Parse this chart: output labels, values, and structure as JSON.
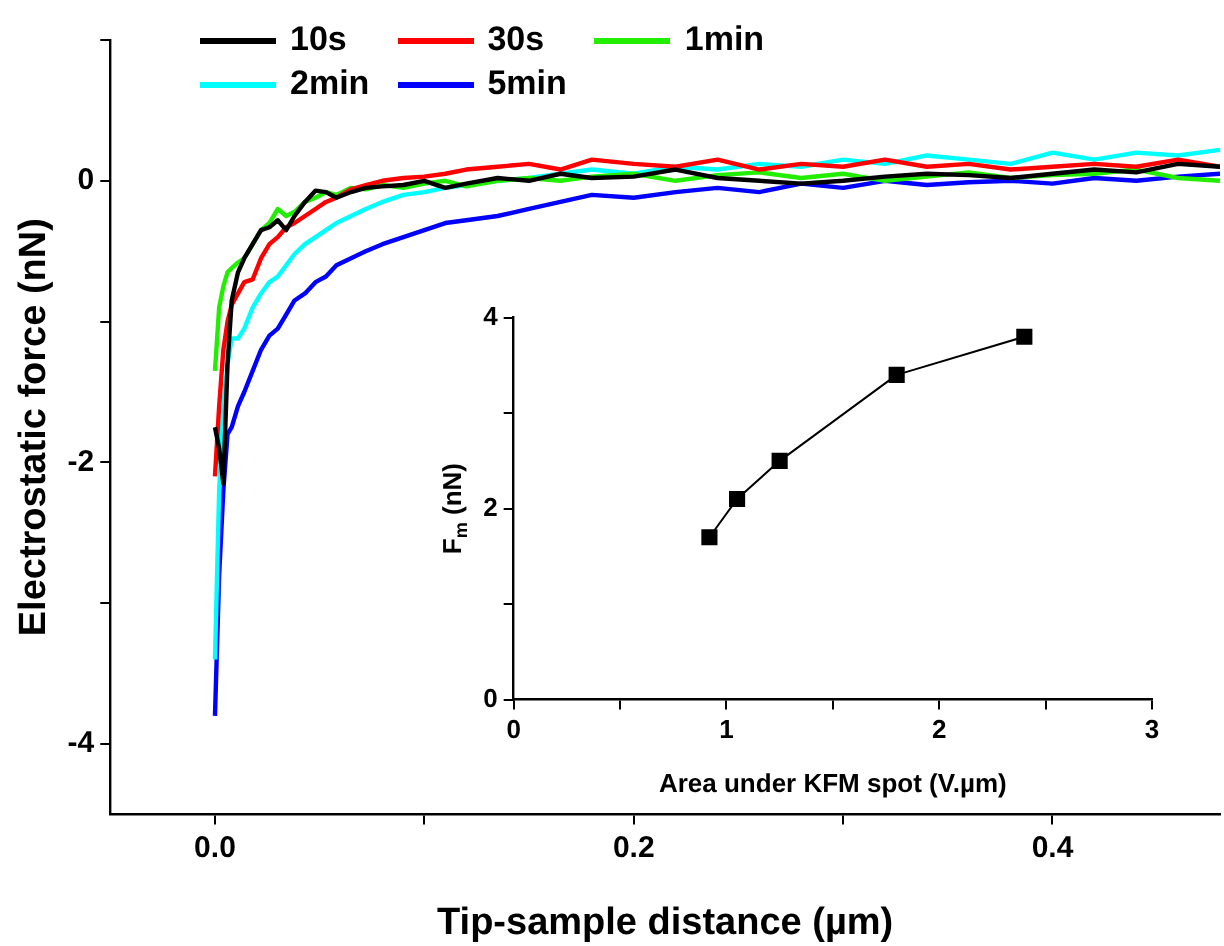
{
  "chart_data": [
    {
      "type": "line",
      "xlabel": "Tip-sample distance (µm)",
      "ylabel": "Electrostatic force (nN)",
      "x": [
        0,
        0.002,
        0.004,
        0.006,
        0.008,
        0.011,
        0.014,
        0.018,
        0.022,
        0.026,
        0.03,
        0.034,
        0.038,
        0.043,
        0.048,
        0.053,
        0.058,
        0.065,
        0.072,
        0.08,
        0.09,
        0.1,
        0.11,
        0.12,
        0.135,
        0.15,
        0.165,
        0.18,
        0.2,
        0.22,
        0.24,
        0.26,
        0.28,
        0.3,
        0.32,
        0.34,
        0.36,
        0.38,
        0.4,
        0.42,
        0.44,
        0.46,
        0.48
      ],
      "series": [
        {
          "name": "10s",
          "color": "#000000",
          "values": [
            -1.75,
            -1.9,
            -2.15,
            -1.3,
            -0.85,
            -0.65,
            -0.55,
            -0.45,
            -0.35,
            -0.33,
            -0.28,
            -0.35,
            -0.25,
            -0.15,
            -0.07,
            -0.08,
            -0.12,
            -0.08,
            -0.05,
            -0.04,
            -0.03,
            0.0,
            -0.05,
            -0.02,
            0.02,
            0.0,
            0.05,
            0.02,
            0.03,
            0.08,
            0.02,
            0.0,
            -0.02,
            0.0,
            0.03,
            0.05,
            0.04,
            0.02,
            0.05,
            0.08,
            0.06,
            0.12,
            0.1
          ]
        },
        {
          "name": "30s",
          "color": "#ff0000",
          "values": [
            -2.1,
            -1.6,
            -1.2,
            -1.0,
            -0.88,
            -0.8,
            -0.72,
            -0.7,
            -0.55,
            -0.45,
            -0.4,
            -0.33,
            -0.3,
            -0.25,
            -0.2,
            -0.15,
            -0.12,
            -0.06,
            -0.03,
            0.0,
            0.02,
            0.03,
            0.05,
            0.08,
            0.1,
            0.12,
            0.08,
            0.15,
            0.12,
            0.1,
            0.15,
            0.08,
            0.12,
            0.1,
            0.15,
            0.1,
            0.12,
            0.08,
            0.1,
            0.12,
            0.1,
            0.15,
            0.1
          ]
        },
        {
          "name": "1min",
          "color": "#22ee00",
          "values": [
            -1.35,
            -0.9,
            -0.75,
            -0.65,
            -0.62,
            -0.58,
            -0.55,
            -0.45,
            -0.35,
            -0.3,
            -0.2,
            -0.25,
            -0.22,
            -0.15,
            -0.12,
            -0.08,
            -0.1,
            -0.05,
            -0.06,
            -0.03,
            -0.05,
            -0.02,
            0.0,
            -0.04,
            0.0,
            0.02,
            0.0,
            0.03,
            0.05,
            0.0,
            0.04,
            0.06,
            0.02,
            0.05,
            0.0,
            0.03,
            0.06,
            0.02,
            0.04,
            0.05,
            0.08,
            0.02,
            0.0
          ]
        },
        {
          "name": "2min",
          "color": "#00ffff",
          "values": [
            -3.4,
            -2.2,
            -1.6,
            -1.3,
            -1.12,
            -1.12,
            -1.05,
            -0.9,
            -0.8,
            -0.72,
            -0.68,
            -0.6,
            -0.52,
            -0.45,
            -0.4,
            -0.35,
            -0.3,
            -0.25,
            -0.2,
            -0.15,
            -0.1,
            -0.08,
            -0.05,
            -0.03,
            0.0,
            0.02,
            0.05,
            0.08,
            0.05,
            0.1,
            0.08,
            0.12,
            0.1,
            0.15,
            0.12,
            0.18,
            0.15,
            0.12,
            0.2,
            0.15,
            0.2,
            0.18,
            0.22
          ]
        },
        {
          "name": "5min",
          "color": "#0000ff",
          "values": [
            -3.8,
            -2.8,
            -2.2,
            -1.8,
            -1.75,
            -1.6,
            -1.5,
            -1.35,
            -1.2,
            -1.1,
            -1.05,
            -0.95,
            -0.85,
            -0.8,
            -0.72,
            -0.68,
            -0.6,
            -0.55,
            -0.5,
            -0.45,
            -0.4,
            -0.35,
            -0.3,
            -0.28,
            -0.25,
            -0.2,
            -0.15,
            -0.1,
            -0.12,
            -0.08,
            -0.05,
            -0.08,
            -0.02,
            -0.05,
            0.0,
            -0.03,
            -0.01,
            0.0,
            -0.02,
            0.02,
            0.0,
            0.03,
            0.05
          ]
        }
      ],
      "xlim": [
        -0.05,
        0.48
      ],
      "ylim": [
        -4.5,
        1
      ],
      "xticks": [
        {
          "value": 0,
          "label": "0.0"
        },
        {
          "value": 0.1,
          "label": null
        },
        {
          "value": 0.2,
          "label": "0.2"
        },
        {
          "value": 0.3,
          "label": null
        },
        {
          "value": 0.4,
          "label": "0.4"
        }
      ],
      "yticks": [
        -4,
        {
          "value": -3,
          "label": null
        },
        -2,
        {
          "value": -1,
          "label": null
        },
        0,
        {
          "value": 1,
          "label": null
        }
      ],
      "legend": "top left"
    },
    {
      "type": "line",
      "xlabel": "Area under KFM spot (V.µm)",
      "ylabel": "F$_{m}$ (nN)",
      "x": [
        0.92,
        1.05,
        1.25,
        1.8,
        2.4
      ],
      "values": [
        1.7,
        2.1,
        2.5,
        3.4,
        3.8
      ],
      "color": "#000000",
      "marker": "square",
      "xlim": [
        0,
        3
      ],
      "ylim": [
        0,
        4
      ],
      "xticks": [
        0,
        {
          "value": 0.5,
          "label": null
        },
        1,
        {
          "value": 1.5,
          "label": null
        },
        2,
        {
          "value": 2.5,
          "label": null
        },
        3
      ],
      "yticks": [
        0,
        {
          "value": 1,
          "label": null
        },
        2,
        {
          "value": 3,
          "label": null
        },
        4
      ]
    }
  ]
}
